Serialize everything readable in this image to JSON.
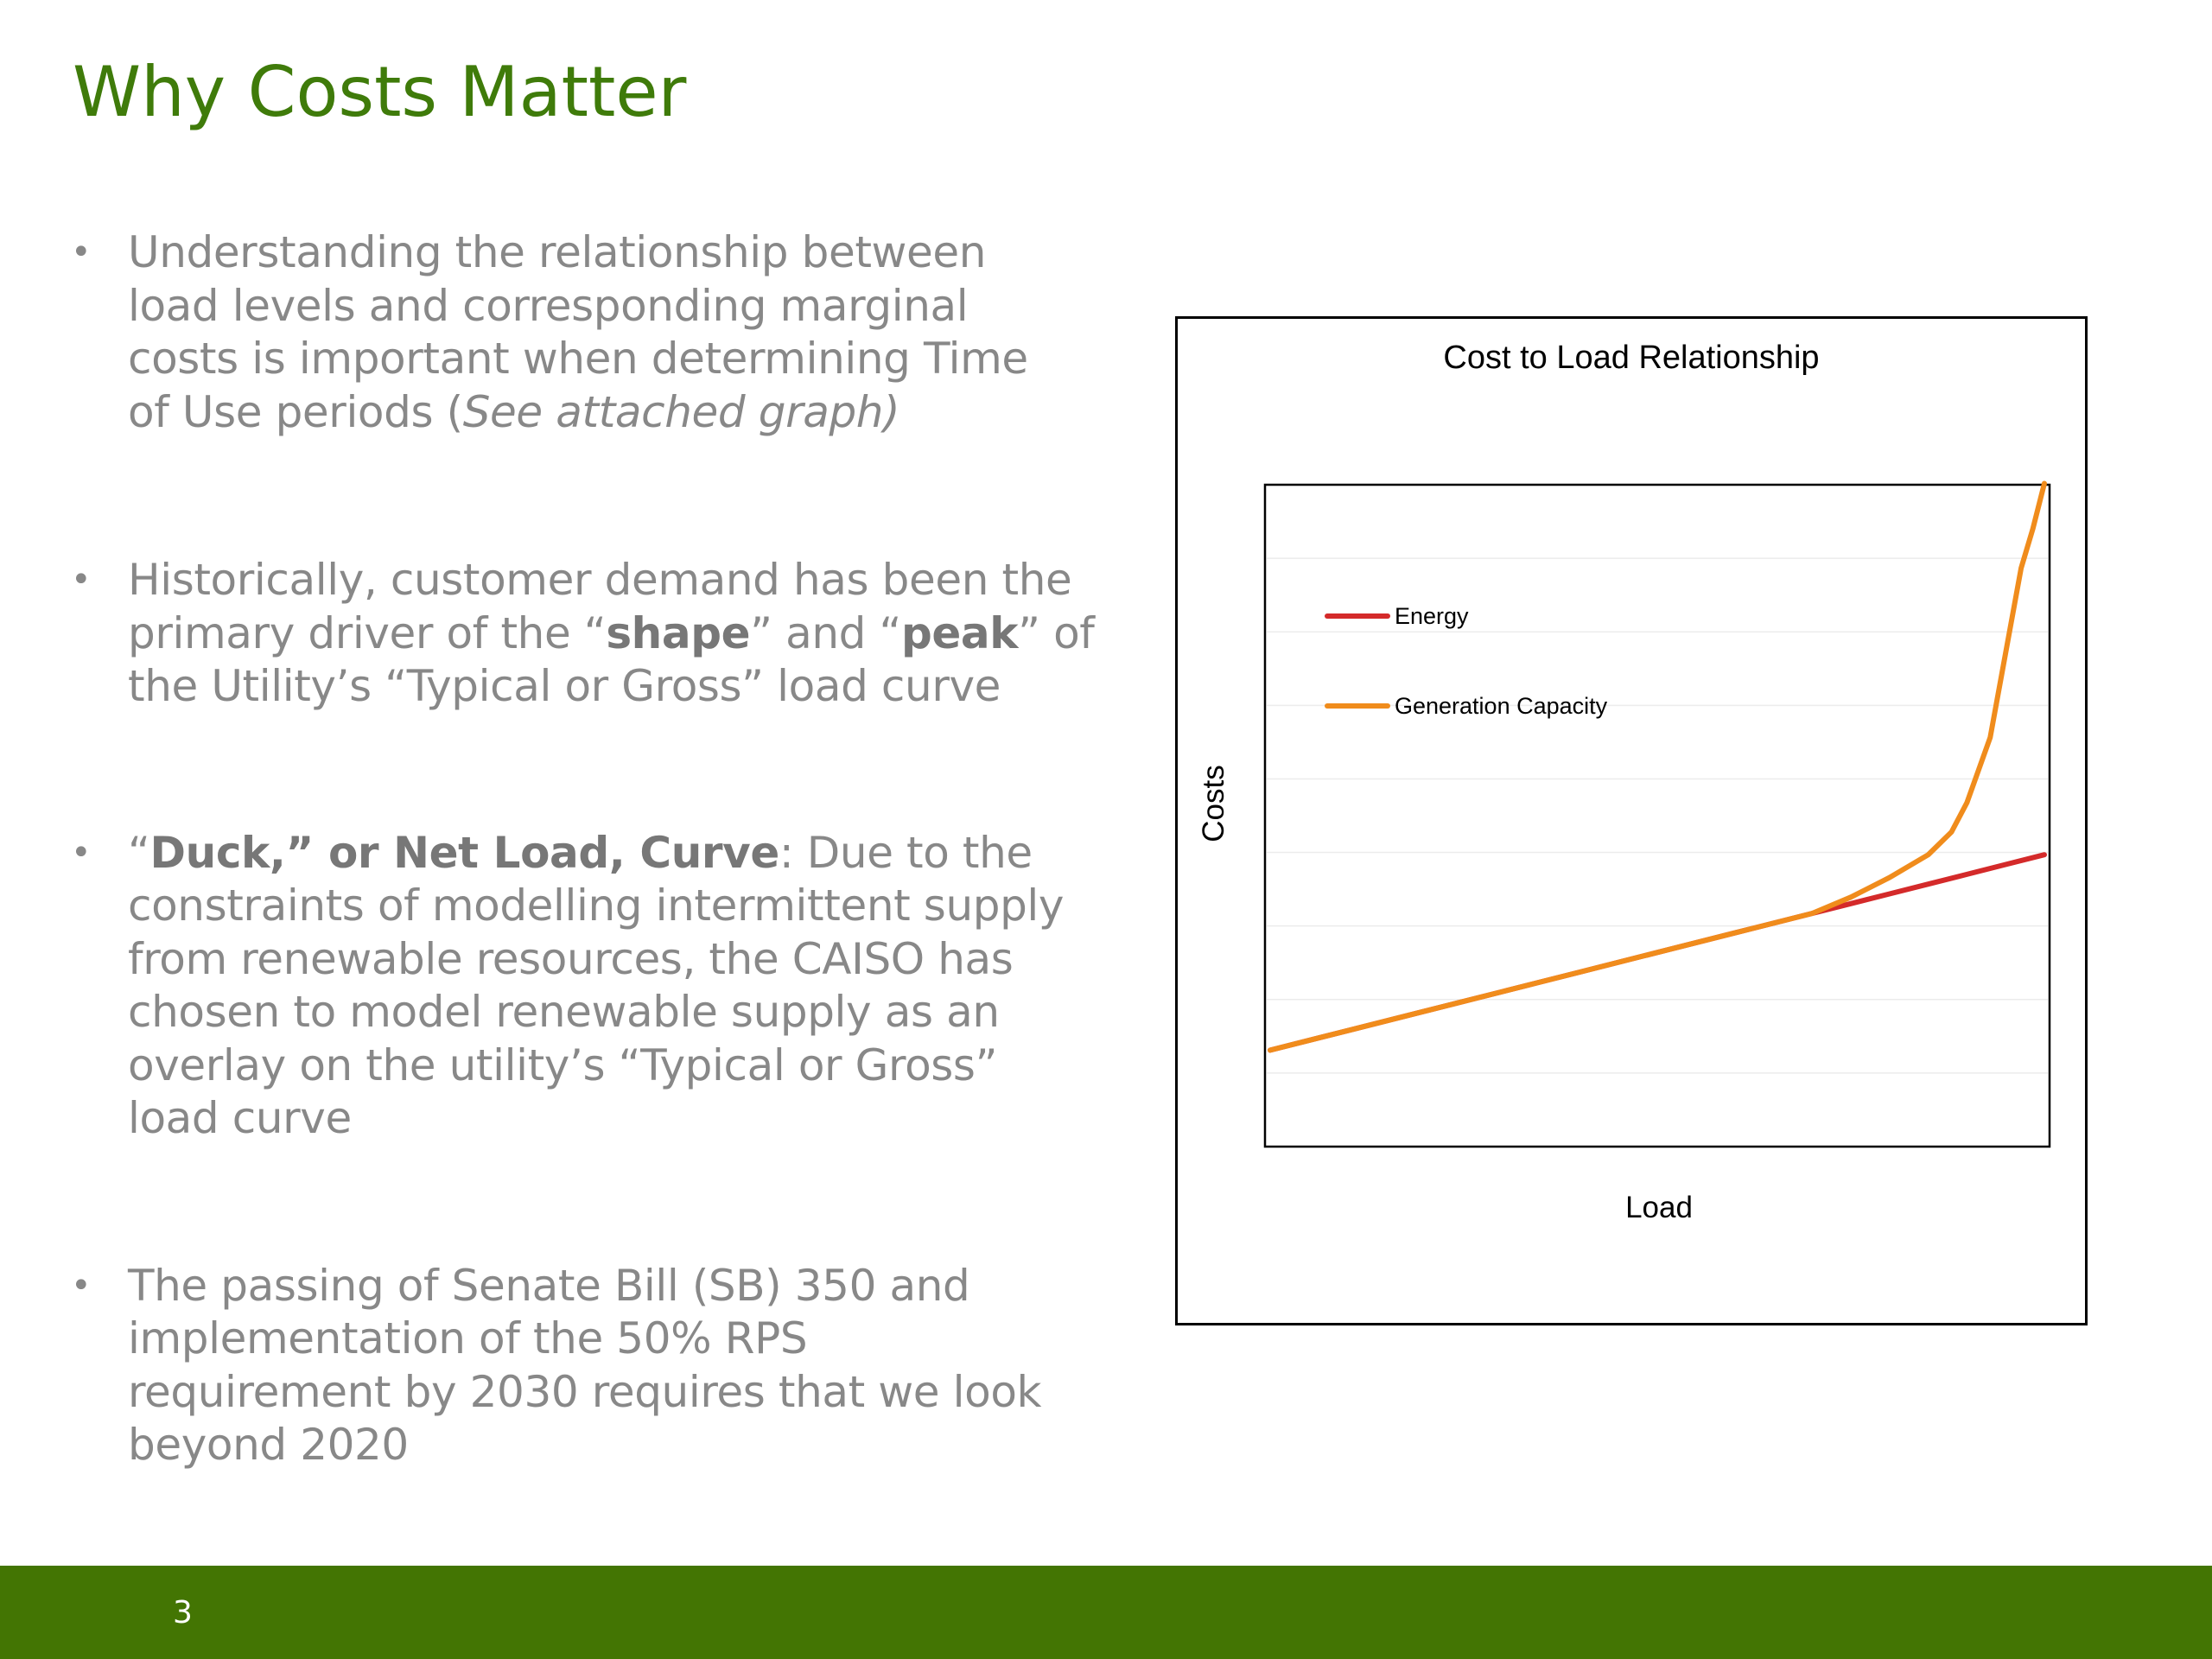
{
  "slide": {
    "title": "Why Costs Matter",
    "page_number": "3"
  },
  "bullets": {
    "b1": {
      "l1": "Understanding the relationship between",
      "l2": "load levels and corresponding marginal",
      "l3": "costs is important when determining Time",
      "l4_pre": "of Use periods (",
      "l4_italic": "See attached graph)"
    },
    "b2": {
      "l1": "Historically, customer demand has been the",
      "l2_pre": "primary driver of the “",
      "l2_bold1": "shape",
      "l2_mid": "” and “",
      "l2_bold2": "peak",
      "l2_post": "” of",
      "l3": "the Utility’s “Typical or Gross” load curve"
    },
    "b3": {
      "l1_pre": "“",
      "l1_bold": "Duck,” or Net Load, Curve",
      "l1_post": ": Due to the",
      "l2": "constraints of modelling intermittent supply",
      "l3": "from renewable resources, the CAISO has",
      "l4": "chosen to model renewable supply as an",
      "l5": "overlay on the utility’s “Typical or Gross”",
      "l6": "load curve"
    },
    "b4": {
      "l1": "The passing of Senate Bill (SB) 350 and",
      "l2": "implementation of the 50% RPS",
      "l3": "requirement by 2030 requires that we look",
      "l4": "beyond 2020"
    }
  },
  "chart_data": {
    "type": "line",
    "title": "Cost to Load Relationship",
    "xlabel": "Load",
    "ylabel": "Costs",
    "x_ticks_shown": false,
    "y_ticks_shown": false,
    "grid": "horizontal, faint",
    "legend_position": "top-left",
    "xlim": [
      0,
      100
    ],
    "ylim": [
      0,
      100
    ],
    "series": [
      {
        "name": "Energy",
        "color": "#d42a2a",
        "x": [
          0,
          10,
          20,
          30,
          40,
          50,
          60,
          70,
          75,
          80,
          85,
          90,
          95,
          100
        ],
        "y": [
          14,
          17,
          20,
          23,
          26,
          29,
          32,
          35,
          36.5,
          38,
          39.5,
          41,
          42.5,
          44
        ]
      },
      {
        "name": "Generation Capacity",
        "color": "#f08c1c",
        "x": [
          0,
          10,
          20,
          30,
          40,
          50,
          60,
          70,
          75,
          80,
          85,
          88,
          90,
          93,
          95,
          97,
          98.5,
          100
        ],
        "y": [
          14,
          17,
          20,
          23,
          26,
          29,
          32,
          35,
          37.5,
          40.5,
          44,
          47.5,
          52,
          62,
          75,
          88,
          94,
          101
        ]
      }
    ]
  }
}
